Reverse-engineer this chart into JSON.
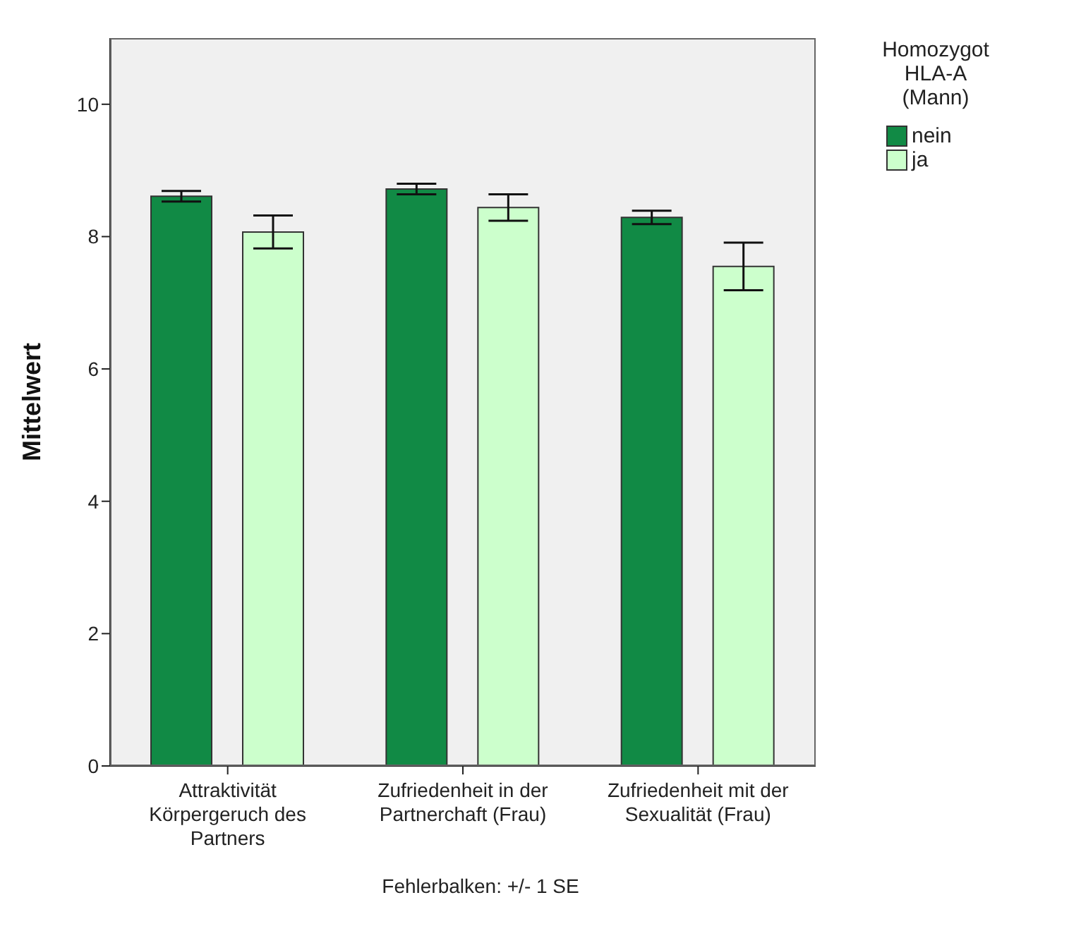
{
  "chart_data": {
    "type": "bar",
    "categories": [
      "Attraktivität Körpergeruch des Partners",
      "Zufriedenheit in der Partnerchaft (Frau)",
      "Zufriedenheit mit der Sexualität (Frau)"
    ],
    "ylabel": "Mittelwert",
    "legend_title": "Homozygot HLA-A (Mann)",
    "series": [
      {
        "name": "nein",
        "color": "#118a45",
        "values": [
          8.61,
          8.72,
          8.29
        ],
        "errors": [
          0.08,
          0.08,
          0.1
        ]
      },
      {
        "name": "ja",
        "color": "#ccffcc",
        "values": [
          8.07,
          8.44,
          7.55
        ],
        "errors": [
          0.25,
          0.2,
          0.36
        ]
      }
    ],
    "ylim": [
      0,
      11
    ],
    "yticks": [
      0,
      2,
      4,
      6,
      8,
      10
    ],
    "legend": "top right",
    "annotations": [
      "Fehlerbalken: +/- 1 SE"
    ]
  }
}
